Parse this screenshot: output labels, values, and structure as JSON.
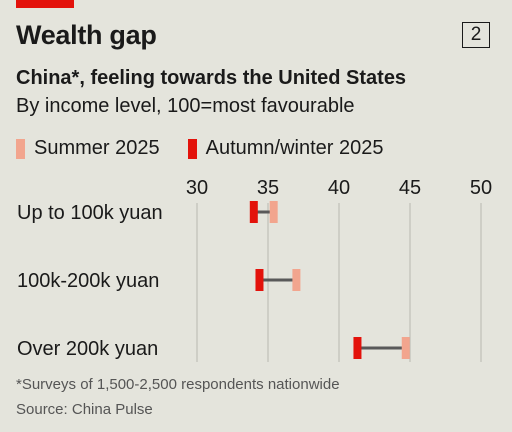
{
  "header": {
    "title": "Wealth gap",
    "chart_number": "2",
    "subtitle": "China*, feeling towards the United States",
    "description": "By income level, 100=most favourable"
  },
  "colors": {
    "summer": "#f2a58e",
    "autumn": "#e3120b",
    "connector": "#595959",
    "grid": "#b8b8b0",
    "accent_bar": "#e3120b"
  },
  "chart_data": {
    "type": "dumbbell",
    "title": "China*, feeling towards the United States",
    "subtitle": "By income level, 100=most favourable",
    "xlim": [
      30,
      50
    ],
    "xticks": [
      "30",
      "35",
      "40",
      "45",
      "50"
    ],
    "categories": [
      "Up to 100k yuan",
      "100k-200k yuan",
      "Over 200k yuan"
    ],
    "series": [
      {
        "name": "Summer 2025",
        "values": [
          35.4,
          37.0,
          44.7
        ]
      },
      {
        "name": "Autumn/winter 2025",
        "values": [
          34.0,
          34.4,
          41.3
        ]
      }
    ],
    "legend_position": "top-left",
    "grid": true
  },
  "footer": {
    "footnote": "*Surveys of 1,500-2,500 respondents nationwide",
    "source": "Source: China Pulse"
  }
}
